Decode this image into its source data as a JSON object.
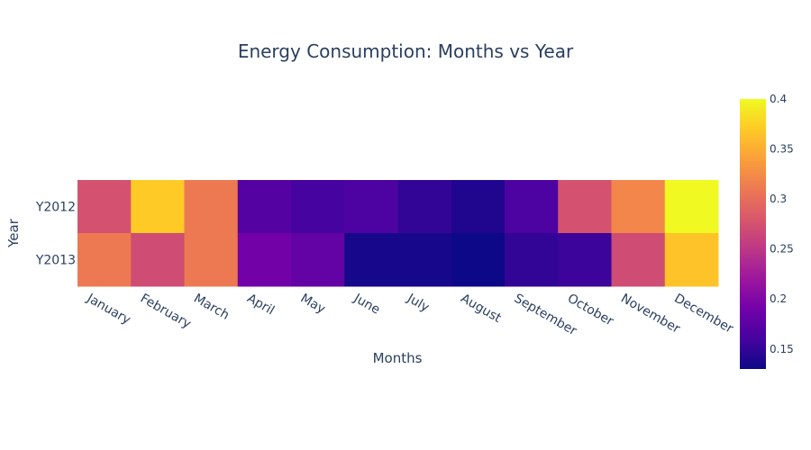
{
  "chart_data": {
    "type": "heatmap",
    "title": "Energy Consumption: Months vs Year",
    "xlabel": "Months",
    "ylabel": "Year",
    "x": [
      "January",
      "February",
      "March",
      "April",
      "May",
      "June",
      "July",
      "August",
      "September",
      "October",
      "November",
      "December"
    ],
    "y": [
      "Y2012",
      "Y2013"
    ],
    "z": [
      [
        0.275,
        0.37,
        0.31,
        0.17,
        0.16,
        0.165,
        0.15,
        0.14,
        0.165,
        0.275,
        0.32,
        0.4
      ],
      [
        0.31,
        0.27,
        0.31,
        0.19,
        0.18,
        0.135,
        0.135,
        0.13,
        0.15,
        0.155,
        0.27,
        0.365
      ]
    ],
    "zrange": [
      0.13,
      0.4
    ],
    "colorbar": {
      "ticks": [
        "0.15",
        "0.2",
        "0.25",
        "0.3",
        "0.35",
        "0.4"
      ],
      "tick_values": [
        0.15,
        0.2,
        0.25,
        0.3,
        0.35,
        0.4
      ]
    },
    "colorscale": [
      "#0d0887",
      "#46039f",
      "#7201a8",
      "#9c179e",
      "#bd3786",
      "#d8576b",
      "#ed7953",
      "#fb9f3a",
      "#fdca26",
      "#f0f921"
    ]
  }
}
